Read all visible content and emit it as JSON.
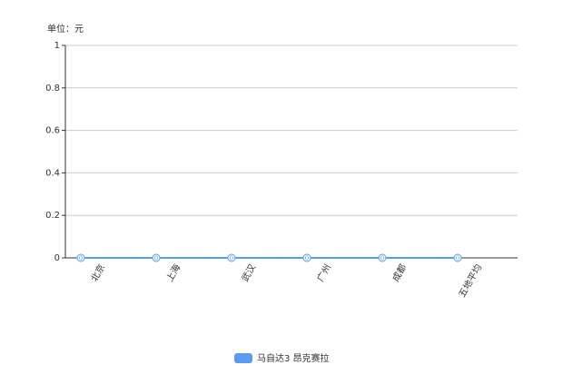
{
  "chart_data": {
    "type": "line",
    "unit_label": "单位：元",
    "categories": [
      "北京",
      "上海",
      "武汉",
      "广州",
      "成都",
      "五地平均"
    ],
    "series": [
      {
        "name": "马自达3 昂克赛拉",
        "color": "#5a9cf0",
        "values": [
          0,
          0,
          0,
          0,
          0,
          0
        ]
      }
    ],
    "ylim": [
      0,
      1
    ],
    "yticks": [
      0,
      0.2,
      0.4,
      0.6,
      0.8,
      1
    ],
    "grid": true,
    "legend": "bottom"
  }
}
